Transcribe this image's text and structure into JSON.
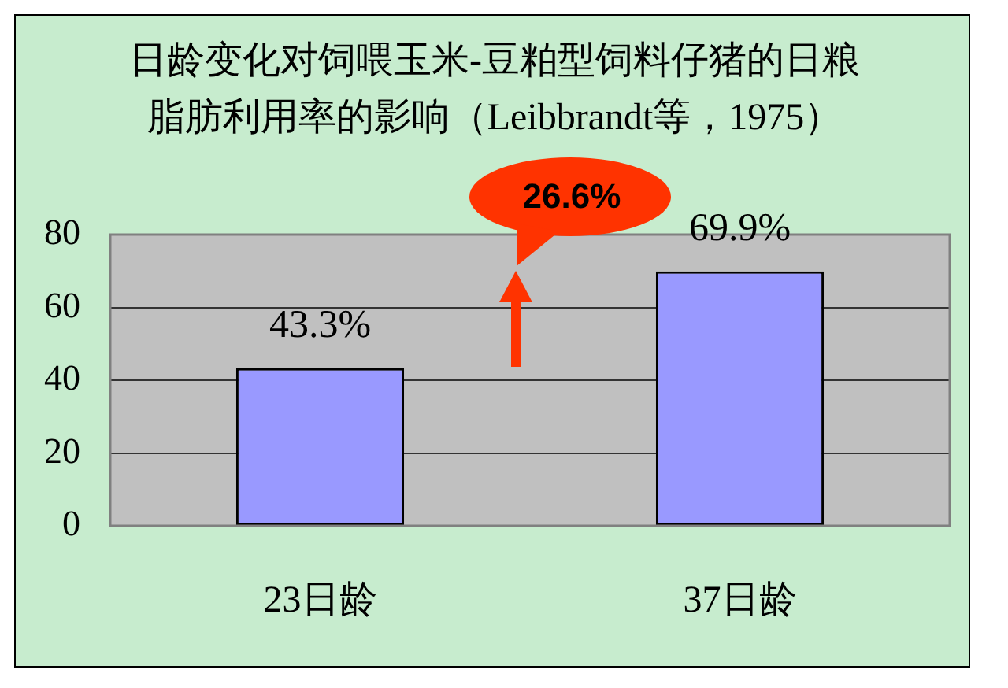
{
  "chart_data": {
    "type": "bar",
    "title": "日龄变化对饲喂玉米-豆粕型饲料仔猪的日粮脂肪利用率的影响（Leibbrandt等，1975）",
    "categories": [
      "23日龄",
      "37日龄"
    ],
    "values": [
      43.3,
      69.9
    ],
    "color": "#9999ff",
    "value_labels": [
      "43.3%",
      "69.9%"
    ],
    "ylim": [
      0,
      80
    ],
    "yticks": [
      0,
      20,
      40,
      60,
      80
    ],
    "grid": "y",
    "annotations": [
      "26.6%"
    ]
  }
}
